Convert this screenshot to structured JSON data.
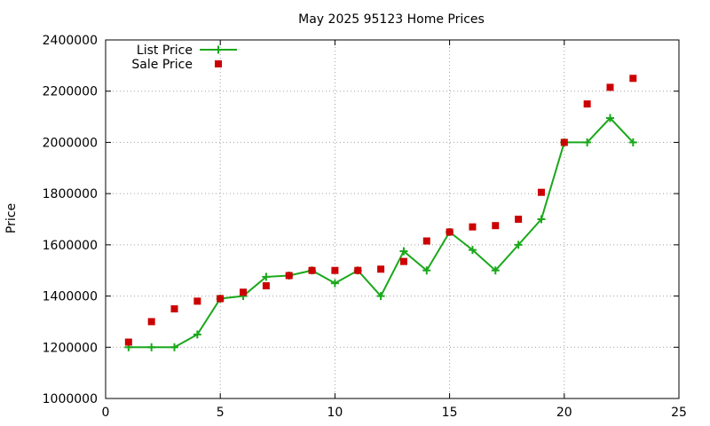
{
  "chart_data": {
    "type": "line",
    "title": "May 2025 95123 Home Prices",
    "xlabel": "",
    "ylabel": "Price",
    "xlim": [
      0,
      25
    ],
    "ylim": [
      1000000,
      2400000
    ],
    "xticks": [
      0,
      5,
      10,
      15,
      20,
      25
    ],
    "yticks": [
      1000000,
      1200000,
      1400000,
      1600000,
      1800000,
      2000000,
      2200000,
      2400000
    ],
    "grid": true,
    "legend": "top-left",
    "series": [
      {
        "name": "List Price",
        "style": "line-with-plus-markers",
        "color": "#1aa81a",
        "x": [
          1,
          2,
          3,
          4,
          5,
          6,
          7,
          8,
          9,
          10,
          11,
          12,
          13,
          14,
          15,
          16,
          17,
          18,
          19,
          20,
          21,
          22,
          23
        ],
        "values": [
          1200000,
          1200000,
          1200000,
          1250000,
          1390000,
          1400000,
          1475000,
          1480000,
          1500000,
          1450000,
          1500000,
          1400000,
          1575000,
          1500000,
          1650000,
          1580000,
          1500000,
          1600000,
          1700000,
          2000000,
          2000000,
          2095000,
          2000000
        ]
      },
      {
        "name": "Sale Price",
        "style": "square-markers",
        "color": "#cc0000",
        "x": [
          1,
          2,
          3,
          4,
          5,
          6,
          7,
          8,
          9,
          10,
          11,
          12,
          13,
          14,
          15,
          16,
          17,
          18,
          19,
          20,
          21,
          22,
          23
        ],
        "values": [
          1220000,
          1300000,
          1350000,
          1380000,
          1390000,
          1415000,
          1440000,
          1480000,
          1500000,
          1500000,
          1500000,
          1505000,
          1535000,
          1615000,
          1650000,
          1670000,
          1675000,
          1700000,
          1805000,
          2000000,
          2150000,
          2215000,
          2250000
        ]
      }
    ]
  }
}
